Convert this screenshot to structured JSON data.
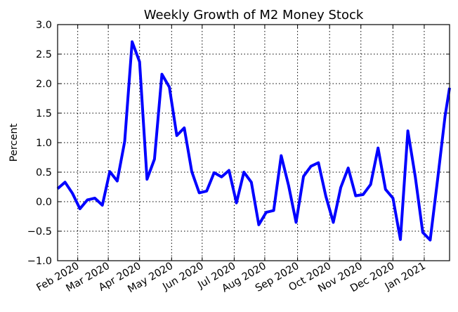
{
  "chart_data": {
    "type": "line",
    "title": "Weekly Growth of M2 Money Stock",
    "xlabel": "",
    "ylabel": "Percent",
    "ylim": [
      -1.0,
      3.0
    ],
    "yticks": [
      -1.0,
      -0.5,
      0.0,
      0.5,
      1.0,
      1.5,
      2.0,
      2.5,
      3.0
    ],
    "ytick_labels": [
      "−1.0",
      "−0.5",
      "0.0",
      "0.5",
      "1.0",
      "1.5",
      "2.0",
      "2.5",
      "3.0"
    ],
    "xlim": [
      0,
      52.6
    ],
    "xticks": [
      2.7,
      6.8,
      11.0,
      15.3,
      19.4,
      23.7,
      27.8,
      32.2,
      36.5,
      40.7,
      45.0,
      49.2
    ],
    "xtick_labels": [
      "Feb 2020",
      "Mar 2020",
      "Apr 2020",
      "May 2020",
      "Jun 2020",
      "Jul 2020",
      "Aug 2020",
      "Sep 2020",
      "Oct 2020",
      "Nov 2020",
      "Dec 2020",
      "Jan 2021"
    ],
    "grid": true,
    "series": [
      {
        "name": "Weekly Growth of M2",
        "color": "#0000ff",
        "x": [
          0,
          1,
          2,
          3,
          4,
          5,
          6,
          7,
          8,
          9,
          10,
          11,
          12,
          13,
          14,
          15,
          16,
          17,
          18,
          19,
          20,
          21,
          22,
          23,
          24,
          25,
          26,
          27,
          28,
          29,
          30,
          31,
          32,
          33,
          34,
          35,
          36,
          37,
          38,
          39,
          40,
          41,
          42,
          43,
          44,
          45,
          46,
          47,
          48,
          49,
          50,
          51,
          52,
          52.6
        ],
        "y": [
          0.22,
          0.33,
          0.14,
          -0.12,
          0.03,
          0.06,
          -0.06,
          0.51,
          0.35,
          1.02,
          2.71,
          2.37,
          0.38,
          0.72,
          2.16,
          1.94,
          1.12,
          1.25,
          0.51,
          0.15,
          0.18,
          0.49,
          0.42,
          0.53,
          -0.02,
          0.5,
          0.33,
          -0.39,
          -0.18,
          -0.15,
          0.78,
          0.27,
          -0.35,
          0.43,
          0.6,
          0.66,
          0.09,
          -0.35,
          0.24,
          0.57,
          0.1,
          0.12,
          0.29,
          0.91,
          0.21,
          0.06,
          -0.64,
          1.2,
          0.42,
          -0.52,
          -0.65,
          0.38,
          1.45,
          1.93
        ]
      }
    ]
  }
}
